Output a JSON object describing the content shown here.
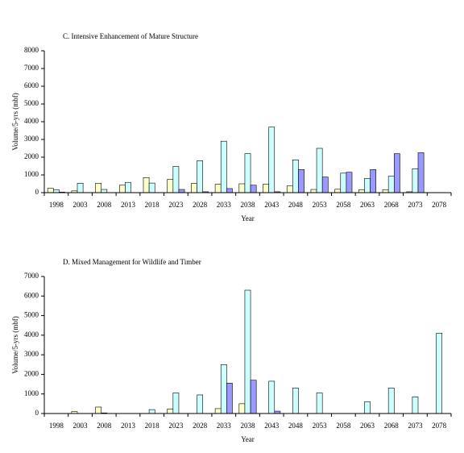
{
  "chart_data": [
    {
      "type": "bar",
      "title": "C. Intensive Enhancement of Mature Structure",
      "x_label": "Year",
      "y_label": "Volume/5-yrs (mbf)",
      "categories": [
        "1998",
        "2003",
        "2008",
        "2013",
        "2018",
        "2023",
        "2028",
        "2033",
        "2038",
        "2043",
        "2048",
        "2053",
        "2058",
        "2063",
        "2068",
        "2073",
        "2078"
      ],
      "series": [
        {
          "color": "#ffffcc",
          "values": [
            250,
            100,
            530,
            420,
            850,
            750,
            520,
            470,
            500,
            480,
            380,
            180,
            190,
            170,
            170,
            50,
            0
          ]
        },
        {
          "color": "#ccffff",
          "values": [
            170,
            530,
            180,
            580,
            540,
            1480,
            1800,
            2900,
            2200,
            3700,
            1850,
            2500,
            1100,
            800,
            930,
            1350,
            0
          ]
        },
        {
          "color": "#9999ff",
          "values": [
            30,
            0,
            0,
            0,
            0,
            180,
            50,
            230,
            420,
            50,
            1300,
            880,
            1150,
            1300,
            2200,
            2250,
            0
          ]
        }
      ],
      "ylim": [
        0,
        8000
      ],
      "yticks": [
        0,
        1000,
        2000,
        3000,
        4000,
        5000,
        6000,
        7000,
        8000
      ]
    },
    {
      "type": "bar",
      "title": "D. Mixed Management for Wildlife and Timber",
      "x_label": "Year",
      "y_label": "Volume/5-yrs (mbf)",
      "categories": [
        "1998",
        "2003",
        "2008",
        "2013",
        "2018",
        "2023",
        "2028",
        "2033",
        "2038",
        "2043",
        "2048",
        "2053",
        "2058",
        "2063",
        "2068",
        "2073",
        "2078"
      ],
      "series": [
        {
          "color": "#ffffcc",
          "values": [
            0,
            100,
            330,
            0,
            0,
            230,
            0,
            250,
            500,
            0,
            0,
            0,
            0,
            0,
            0,
            0,
            0
          ]
        },
        {
          "color": "#ccffff",
          "values": [
            0,
            0,
            30,
            0,
            200,
            1050,
            950,
            2500,
            6300,
            1650,
            1300,
            1050,
            0,
            600,
            1300,
            850,
            4100
          ]
        },
        {
          "color": "#9999ff",
          "values": [
            0,
            0,
            0,
            0,
            0,
            0,
            0,
            1550,
            1700,
            120,
            0,
            0,
            0,
            0,
            0,
            0,
            0
          ]
        }
      ],
      "ylim": [
        0,
        7000
      ],
      "yticks": [
        0,
        1000,
        2000,
        3000,
        4000,
        5000,
        6000,
        7000
      ]
    }
  ]
}
